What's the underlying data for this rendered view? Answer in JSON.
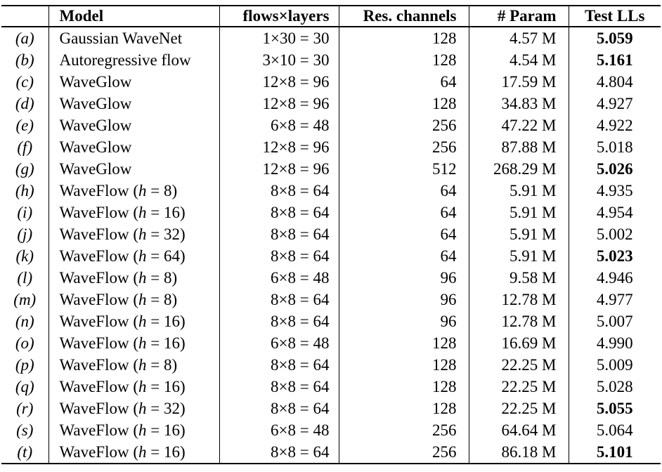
{
  "table": {
    "columns": [
      {
        "label": ""
      },
      {
        "label": "Model"
      },
      {
        "label": "flows×layers"
      },
      {
        "label": "Res. channels"
      },
      {
        "label": "# Param"
      },
      {
        "label": "Test LLs"
      }
    ],
    "rows": [
      {
        "label": "(a)",
        "model": "Gaussian WaveNet",
        "math_var": "",
        "math_rest": "",
        "flows": "1×30 = 30",
        "res_channels": "128",
        "params": "4.57 M",
        "test_ll": "5.059",
        "test_ll_bold": true
      },
      {
        "label": "(b)",
        "model": "Autoregressive flow",
        "math_var": "",
        "math_rest": "",
        "flows": "3×10 = 30",
        "res_channels": "128",
        "params": "4.54 M",
        "test_ll": "5.161",
        "test_ll_bold": true
      },
      {
        "label": "(c)",
        "model": "WaveGlow",
        "math_var": "",
        "math_rest": "",
        "flows": "12×8 = 96",
        "res_channels": "64",
        "params": "17.59 M",
        "test_ll": "4.804",
        "test_ll_bold": false
      },
      {
        "label": "(d)",
        "model": "WaveGlow",
        "math_var": "",
        "math_rest": "",
        "flows": "12×8 = 96",
        "res_channels": "128",
        "params": "34.83 M",
        "test_ll": "4.927",
        "test_ll_bold": false
      },
      {
        "label": "(e)",
        "model": "WaveGlow",
        "math_var": "",
        "math_rest": "",
        "flows": "6×8 = 48",
        "res_channels": "256",
        "params": "47.22 M",
        "test_ll": "4.922",
        "test_ll_bold": false
      },
      {
        "label": "(f)",
        "model": "WaveGlow",
        "math_var": "",
        "math_rest": "",
        "flows": "12×8 = 96",
        "res_channels": "256",
        "params": "87.88 M",
        "test_ll": "5.018",
        "test_ll_bold": false
      },
      {
        "label": "(g)",
        "model": "WaveGlow",
        "math_var": "",
        "math_rest": "",
        "flows": "12×8 = 96",
        "res_channels": "512",
        "params": "268.29 M",
        "test_ll": "5.026",
        "test_ll_bold": true
      },
      {
        "label": "(h)",
        "model": "WaveFlow",
        "math_var": "h",
        "math_rest": " = 8",
        "flows": "8×8 = 64",
        "res_channels": "64",
        "params": "5.91 M",
        "test_ll": "4.935",
        "test_ll_bold": false
      },
      {
        "label": "(i)",
        "model": "WaveFlow",
        "math_var": "h",
        "math_rest": " = 16",
        "flows": "8×8 = 64",
        "res_channels": "64",
        "params": "5.91 M",
        "test_ll": "4.954",
        "test_ll_bold": false
      },
      {
        "label": "(j)",
        "model": "WaveFlow",
        "math_var": "h",
        "math_rest": " = 32",
        "flows": "8×8 = 64",
        "res_channels": "64",
        "params": "5.91 M",
        "test_ll": "5.002",
        "test_ll_bold": false
      },
      {
        "label": "(k)",
        "model": "WaveFlow",
        "math_var": "h",
        "math_rest": " = 64",
        "flows": "8×8 = 64",
        "res_channels": "64",
        "params": "5.91 M",
        "test_ll": "5.023",
        "test_ll_bold": true
      },
      {
        "label": "(l)",
        "model": "WaveFlow",
        "math_var": "h",
        "math_rest": " = 8",
        "flows": "6×8 = 48",
        "res_channels": "96",
        "params": "9.58 M",
        "test_ll": "4.946",
        "test_ll_bold": false
      },
      {
        "label": "(m)",
        "model": "WaveFlow",
        "math_var": "h",
        "math_rest": " = 8",
        "flows": "8×8 = 64",
        "res_channels": "96",
        "params": "12.78 M",
        "test_ll": "4.977",
        "test_ll_bold": false
      },
      {
        "label": "(n)",
        "model": "WaveFlow",
        "math_var": "h",
        "math_rest": " = 16",
        "flows": "8×8 = 64",
        "res_channels": "96",
        "params": "12.78 M",
        "test_ll": "5.007",
        "test_ll_bold": false
      },
      {
        "label": "(o)",
        "model": "WaveFlow",
        "math_var": "h",
        "math_rest": " = 16",
        "flows": "6×8 = 48",
        "res_channels": "128",
        "params": "16.69 M",
        "test_ll": "4.990",
        "test_ll_bold": false
      },
      {
        "label": "(p)",
        "model": "WaveFlow",
        "math_var": "h",
        "math_rest": " = 8",
        "flows": "8×8 = 64",
        "res_channels": "128",
        "params": "22.25 M",
        "test_ll": "5.009",
        "test_ll_bold": false
      },
      {
        "label": "(q)",
        "model": "WaveFlow",
        "math_var": "h",
        "math_rest": " = 16",
        "flows": "8×8 = 64",
        "res_channels": "128",
        "params": "22.25 M",
        "test_ll": "5.028",
        "test_ll_bold": false
      },
      {
        "label": "(r)",
        "model": "WaveFlow",
        "math_var": "h",
        "math_rest": " = 32",
        "flows": "8×8 = 64",
        "res_channels": "128",
        "params": "22.25 M",
        "test_ll": "5.055",
        "test_ll_bold": true
      },
      {
        "label": "(s)",
        "model": "WaveFlow",
        "math_var": "h",
        "math_rest": " = 16",
        "flows": "6×8 = 48",
        "res_channels": "256",
        "params": "64.64 M",
        "test_ll": "5.064",
        "test_ll_bold": false
      },
      {
        "label": "(t)",
        "model": "WaveFlow",
        "math_var": "h",
        "math_rest": " = 16",
        "flows": "8×8 = 64",
        "res_channels": "256",
        "params": "86.18 M",
        "test_ll": "5.101",
        "test_ll_bold": true
      }
    ]
  }
}
